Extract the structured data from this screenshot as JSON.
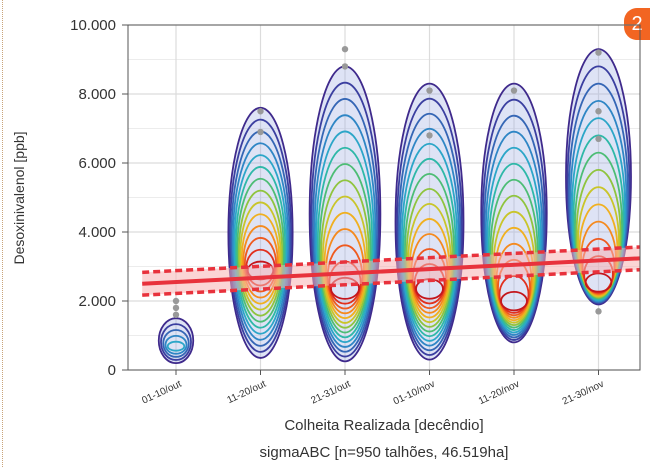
{
  "badge": "2",
  "chart_data": {
    "type": "scatter",
    "title": "",
    "xlabel": "Colheita Realizada [decêndio]",
    "ylabel": "Desoxinivalenol [ppb]",
    "footnote": "sigmaABC [n=950 talhões, 46.519ha]",
    "categories": [
      "01-10/out",
      "11-20/out",
      "21-31/out",
      "01-10/nov",
      "11-20/nov",
      "21-30/nov"
    ],
    "ylim": [
      0,
      10000
    ],
    "yticks": [
      0,
      2000,
      4000,
      6000,
      8000,
      10000
    ],
    "ytick_labels": [
      "0",
      "2.000",
      "4.000",
      "6.000",
      "8.000",
      "10.000"
    ],
    "grid": true,
    "overlay": "density contours per category + linear trend with confidence band",
    "density_modes": [
      {
        "category": "01-10/out",
        "center": 650,
        "extent": [
          200,
          1500
        ]
      },
      {
        "category": "11-20/out",
        "center": 2800,
        "extent": [
          350,
          7600
        ]
      },
      {
        "category": "21-31/out",
        "center": 2200,
        "extent": [
          250,
          8800
        ]
      },
      {
        "category": "01-10/nov",
        "center": 2200,
        "extent": [
          300,
          8300
        ]
      },
      {
        "category": "11-20/nov",
        "center": 1800,
        "extent": [
          800,
          8300
        ]
      },
      {
        "category": "21-30/nov",
        "center": 2300,
        "extent": [
          1900,
          9300
        ]
      }
    ],
    "outliers": [
      {
        "category": "01-10/out",
        "values": [
          2000,
          1800,
          1600
        ]
      },
      {
        "category": "11-20/out",
        "values": [
          6900,
          7500
        ]
      },
      {
        "category": "21-31/out",
        "values": [
          9300,
          8800
        ]
      },
      {
        "category": "01-10/nov",
        "values": [
          8100,
          6800
        ]
      },
      {
        "category": "11-20/nov",
        "values": [
          8100
        ]
      },
      {
        "category": "21-30/nov",
        "values": [
          9200,
          7500,
          6700,
          1700
        ]
      }
    ],
    "trend": {
      "x_start": -0.4,
      "x_end": 5.6,
      "y_start": 2500,
      "y_end": 3250,
      "band": 330
    },
    "colors": {
      "trend": "#e8323c",
      "band": "#f7b3b3",
      "outer_contour": "#3f2a8c",
      "point": "#999999"
    }
  }
}
